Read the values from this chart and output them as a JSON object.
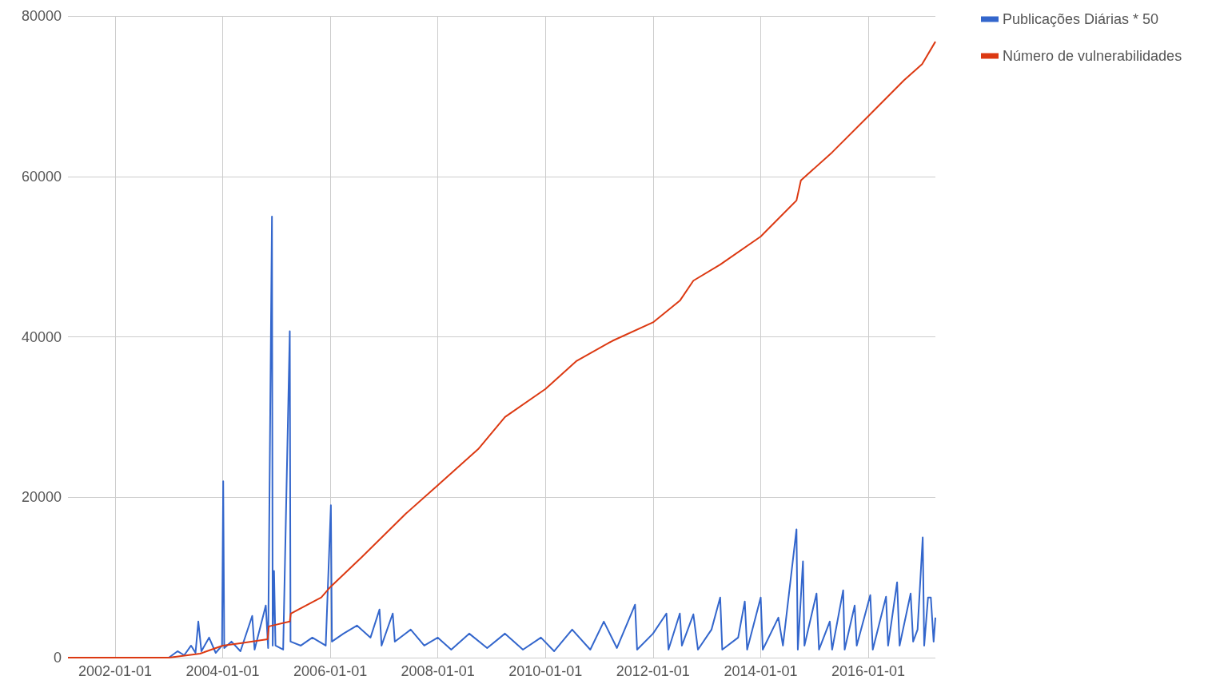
{
  "chart_data": {
    "type": "line",
    "xlim": [
      "2001-02-15",
      "2017-04-01"
    ],
    "xticks": [
      "2002-01-01",
      "2004-01-01",
      "2006-01-01",
      "2008-01-01",
      "2010-01-01",
      "2012-01-01",
      "2014-01-01",
      "2016-01-01"
    ],
    "ylim": [
      0,
      80000
    ],
    "yticks": [
      0,
      20000,
      40000,
      60000,
      80000
    ],
    "grid": true,
    "legend": "top right",
    "marker": "none",
    "series": [
      {
        "name": "Publicações Diárias * 50",
        "color": "#3366cc",
        "x": [
          "2001-02-15",
          "2002-01-01",
          "2003-01-01",
          "2003-03-01",
          "2003-04-15",
          "2003-06-01",
          "2003-07-01",
          "2003-07-20",
          "2003-08-10",
          "2003-10-01",
          "2003-11-15",
          "2003-12-28",
          "2004-01-05",
          "2004-01-12",
          "2004-03-01",
          "2004-05-01",
          "2004-07-20",
          "2004-08-05",
          "2004-10-20",
          "2004-11-05",
          "2004-12-01",
          "2004-12-06",
          "2004-12-15",
          "2004-12-25",
          "2005-02-15",
          "2005-04-01",
          "2005-04-06",
          "2005-06-15",
          "2005-09-01",
          "2005-12-01",
          "2006-01-05",
          "2006-01-12",
          "2006-04-01",
          "2006-07-01",
          "2006-10-01",
          "2006-12-01",
          "2006-12-15",
          "2007-03-01",
          "2007-03-15",
          "2007-07-01",
          "2007-10-01",
          "2008-01-01",
          "2008-04-01",
          "2008-08-01",
          "2008-12-01",
          "2009-04-01",
          "2009-08-01",
          "2009-12-01",
          "2010-03-01",
          "2010-07-01",
          "2010-11-01",
          "2011-02-01",
          "2011-05-01",
          "2011-09-01",
          "2011-09-15",
          "2012-01-01",
          "2012-04-01",
          "2012-04-15",
          "2012-07-01",
          "2012-07-15",
          "2012-10-01",
          "2012-11-01",
          "2013-02-01",
          "2013-04-01",
          "2013-04-15",
          "2013-08-01",
          "2013-09-15",
          "2013-10-01",
          "2014-01-01",
          "2014-01-15",
          "2014-05-01",
          "2014-06-01",
          "2014-09-01",
          "2014-09-10",
          "2014-10-15",
          "2014-10-25",
          "2015-01-15",
          "2015-02-01",
          "2015-04-15",
          "2015-05-01",
          "2015-07-15",
          "2015-07-25",
          "2015-10-01",
          "2015-10-15",
          "2016-01-15",
          "2016-02-01",
          "2016-05-01",
          "2016-05-15",
          "2016-07-15",
          "2016-08-01",
          "2016-10-15",
          "2016-11-01",
          "2016-12-01",
          "2017-01-05",
          "2017-01-15",
          "2017-02-10",
          "2017-03-01",
          "2017-03-20",
          "2017-04-01"
        ],
        "values": [
          0,
          0,
          0,
          800,
          300,
          1500,
          600,
          4500,
          800,
          2500,
          600,
          1500,
          22000,
          1200,
          2000,
          800,
          5200,
          1000,
          6500,
          1200,
          55000,
          1500,
          10800,
          1500,
          1000,
          40700,
          2000,
          1500,
          2500,
          1500,
          19000,
          2000,
          3000,
          4000,
          2500,
          6000,
          1500,
          5500,
          2000,
          3500,
          1500,
          2500,
          1000,
          3000,
          1200,
          3000,
          1000,
          2500,
          800,
          3500,
          1000,
          4500,
          1200,
          6600,
          1000,
          3000,
          5500,
          1000,
          5500,
          1500,
          5400,
          1000,
          3500,
          7500,
          1000,
          2500,
          7000,
          1000,
          7500,
          1000,
          5000,
          1500,
          16000,
          1000,
          12000,
          1500,
          8000,
          1000,
          4500,
          1000,
          8400,
          1000,
          6500,
          1500,
          7800,
          1000,
          7600,
          1500,
          9400,
          1500,
          8000,
          2000,
          3500,
          15000,
          1500,
          7500,
          7500,
          2000,
          5000
        ]
      },
      {
        "name": "Número de vulnerabilidades",
        "color": "#dc3912",
        "x": [
          "2001-02-15",
          "2003-01-01",
          "2003-08-01",
          "2004-01-01",
          "2004-05-01",
          "2004-11-01",
          "2004-11-10",
          "2005-04-01",
          "2005-04-08",
          "2005-11-01",
          "2006-01-01",
          "2006-08-01",
          "2007-06-01",
          "2008-01-01",
          "2008-10-01",
          "2009-04-01",
          "2010-01-01",
          "2010-08-01",
          "2011-04-01",
          "2012-01-01",
          "2012-07-01",
          "2012-10-01",
          "2013-04-01",
          "2014-01-01",
          "2014-09-01",
          "2014-10-01",
          "2015-05-01",
          "2016-01-01",
          "2016-09-01",
          "2017-01-01",
          "2017-04-01"
        ],
        "values": [
          0,
          0,
          500,
          1500,
          1800,
          2300,
          3900,
          4500,
          5500,
          7500,
          8800,
          12500,
          18000,
          21500,
          26000,
          30000,
          33500,
          37000,
          39500,
          41800,
          44500,
          47000,
          49000,
          52500,
          57000,
          59500,
          63000,
          67500,
          72000,
          74000,
          76800
        ]
      }
    ]
  }
}
